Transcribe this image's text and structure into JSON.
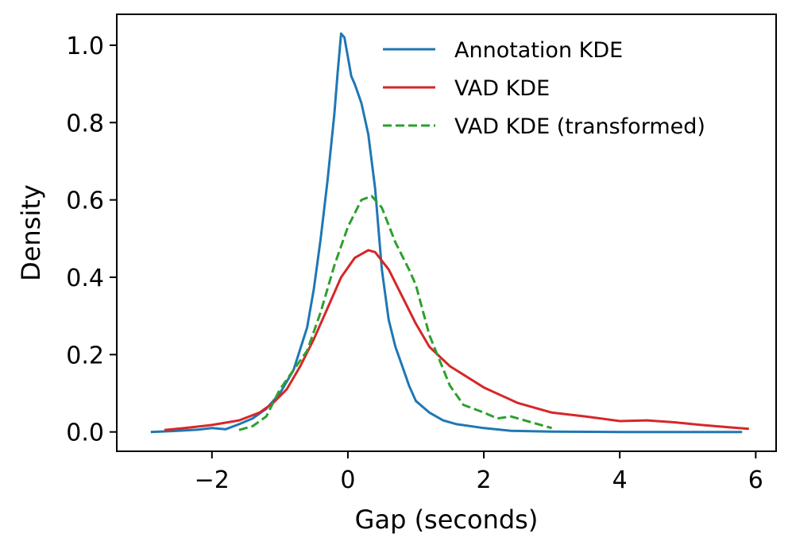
{
  "chart_data": {
    "type": "line",
    "title": "",
    "xlabel": "Gap (seconds)",
    "ylabel": "Density",
    "xlim": [
      -3.4,
      6.3
    ],
    "ylim": [
      -0.05,
      1.08
    ],
    "xticks": [
      -2,
      0,
      2,
      4,
      6
    ],
    "xtick_labels": [
      "−2",
      "0",
      "2",
      "4",
      "6"
    ],
    "yticks": [
      0.0,
      0.2,
      0.4,
      0.6,
      0.8,
      1.0
    ],
    "ytick_labels": [
      "0.0",
      "0.2",
      "0.4",
      "0.6",
      "0.8",
      "1.0"
    ],
    "grid": false,
    "legend": "top-right",
    "series": [
      {
        "name": "Annotation KDE",
        "color": "#1f77b4",
        "dash": "solid",
        "x": [
          -2.9,
          -2.5,
          -2.2,
          -2.0,
          -1.8,
          -1.6,
          -1.4,
          -1.2,
          -1.0,
          -0.8,
          -0.6,
          -0.5,
          -0.4,
          -0.3,
          -0.2,
          -0.15,
          -0.1,
          -0.05,
          0.0,
          0.05,
          0.1,
          0.2,
          0.3,
          0.4,
          0.5,
          0.6,
          0.7,
          0.8,
          0.9,
          1.0,
          1.2,
          1.4,
          1.6,
          2.0,
          2.4,
          3.0,
          4.0,
          5.0,
          5.8
        ],
        "y": [
          0.0,
          0.003,
          0.006,
          0.01,
          0.007,
          0.02,
          0.035,
          0.06,
          0.1,
          0.16,
          0.27,
          0.37,
          0.5,
          0.65,
          0.82,
          0.93,
          1.03,
          1.02,
          0.97,
          0.92,
          0.9,
          0.85,
          0.77,
          0.63,
          0.42,
          0.29,
          0.22,
          0.17,
          0.12,
          0.08,
          0.05,
          0.03,
          0.02,
          0.01,
          0.003,
          0.001,
          0.0,
          0.0,
          0.0
        ]
      },
      {
        "name": "VAD KDE",
        "color": "#d62728",
        "dash": "solid",
        "x": [
          -2.7,
          -2.4,
          -2.0,
          -1.6,
          -1.3,
          -1.1,
          -0.9,
          -0.7,
          -0.5,
          -0.3,
          -0.1,
          0.1,
          0.3,
          0.4,
          0.6,
          0.8,
          1.0,
          1.2,
          1.5,
          2.0,
          2.5,
          3.0,
          3.5,
          4.0,
          4.4,
          4.8,
          5.2,
          5.6,
          5.9
        ],
        "y": [
          0.005,
          0.01,
          0.018,
          0.03,
          0.05,
          0.075,
          0.11,
          0.17,
          0.24,
          0.32,
          0.4,
          0.45,
          0.47,
          0.465,
          0.42,
          0.35,
          0.28,
          0.22,
          0.17,
          0.115,
          0.075,
          0.05,
          0.04,
          0.028,
          0.03,
          0.025,
          0.018,
          0.012,
          0.008
        ]
      },
      {
        "name": "VAD KDE (transformed)",
        "color": "#2ca02c",
        "dash": "dashed",
        "x": [
          -1.6,
          -1.4,
          -1.2,
          -1.0,
          -0.8,
          -0.6,
          -0.4,
          -0.2,
          0.0,
          0.2,
          0.35,
          0.5,
          0.7,
          0.9,
          1.0,
          1.2,
          1.5,
          1.7,
          2.0,
          2.2,
          2.4,
          2.7,
          3.0
        ],
        "y": [
          0.005,
          0.015,
          0.04,
          0.11,
          0.16,
          0.21,
          0.31,
          0.43,
          0.53,
          0.6,
          0.61,
          0.58,
          0.49,
          0.42,
          0.38,
          0.25,
          0.12,
          0.07,
          0.05,
          0.035,
          0.04,
          0.025,
          0.01
        ]
      }
    ]
  }
}
